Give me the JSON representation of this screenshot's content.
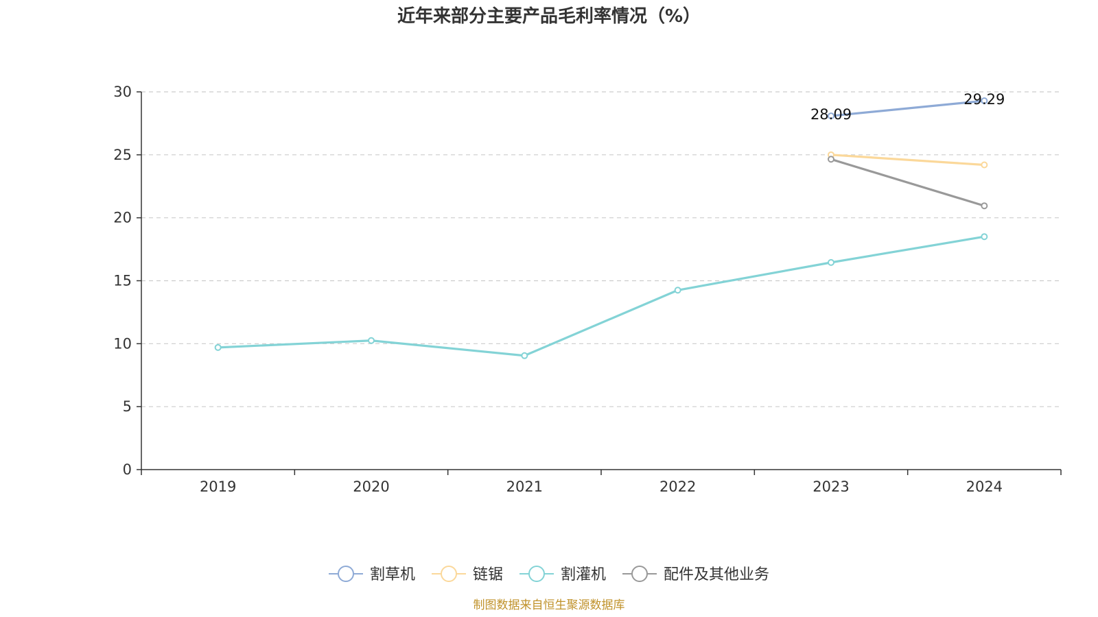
{
  "title": "近年来部分主要产品毛利率情况（%）",
  "source": "制图数据来自恒生聚源数据库",
  "colors": {
    "axis": "#333333",
    "grid": "#cccccc",
    "text": "#333333",
    "source": "#c0922b"
  },
  "chart_data": {
    "type": "line",
    "x": [
      "2019",
      "2020",
      "2021",
      "2022",
      "2023",
      "2024"
    ],
    "ylim": [
      0,
      30
    ],
    "yticks": [
      0,
      5,
      10,
      15,
      20,
      25,
      30
    ],
    "grid": true,
    "legend_position": "bottom-center",
    "series": [
      {
        "name": "割草机",
        "color": "#8eaad6",
        "values": [
          null,
          null,
          null,
          null,
          28.09,
          29.29
        ],
        "labels": true
      },
      {
        "name": "链锯",
        "color": "#fbd89a",
        "values": [
          null,
          null,
          null,
          null,
          25.0,
          24.2
        ],
        "labels": false
      },
      {
        "name": "割灌机",
        "color": "#83d3d6",
        "values": [
          9.7,
          10.25,
          9.05,
          14.25,
          16.45,
          18.5
        ],
        "labels": false
      },
      {
        "name": "配件及其他业务",
        "color": "#999999",
        "values": [
          null,
          null,
          null,
          null,
          24.65,
          20.95
        ],
        "labels": false
      }
    ]
  }
}
